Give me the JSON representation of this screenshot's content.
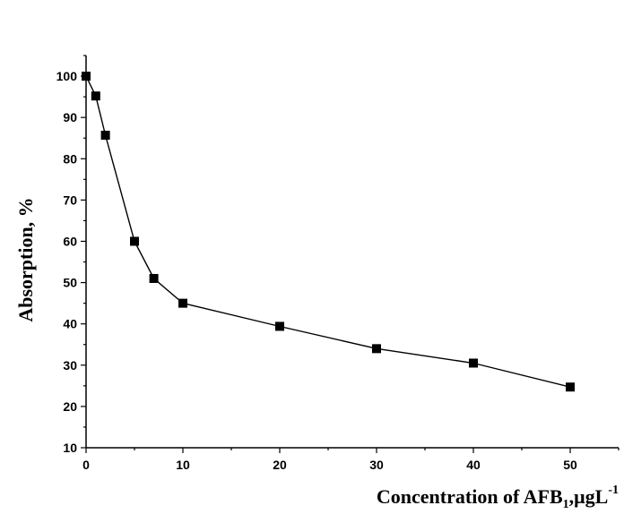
{
  "chart_data": {
    "type": "line",
    "title": "",
    "xlabel": "Concentration of AFB",
    "xlabel_sub": "1",
    "xlabel_unit": ",μgL",
    "xlabel_sup": "-1",
    "ylabel": "Absorption, %",
    "xlim": [
      0,
      55
    ],
    "ylim": [
      10,
      105
    ],
    "x_ticks": [
      0,
      10,
      20,
      30,
      40,
      50
    ],
    "y_ticks": [
      10,
      20,
      30,
      40,
      50,
      60,
      70,
      80,
      90,
      100
    ],
    "grid": false,
    "marker": "square",
    "series": [
      {
        "x": [
          0,
          1,
          2,
          5,
          7,
          10,
          20,
          30,
          40,
          50
        ],
        "y": [
          100,
          95.2,
          85.7,
          60,
          51,
          45,
          39.4,
          34,
          30.5,
          24.7
        ]
      }
    ]
  }
}
